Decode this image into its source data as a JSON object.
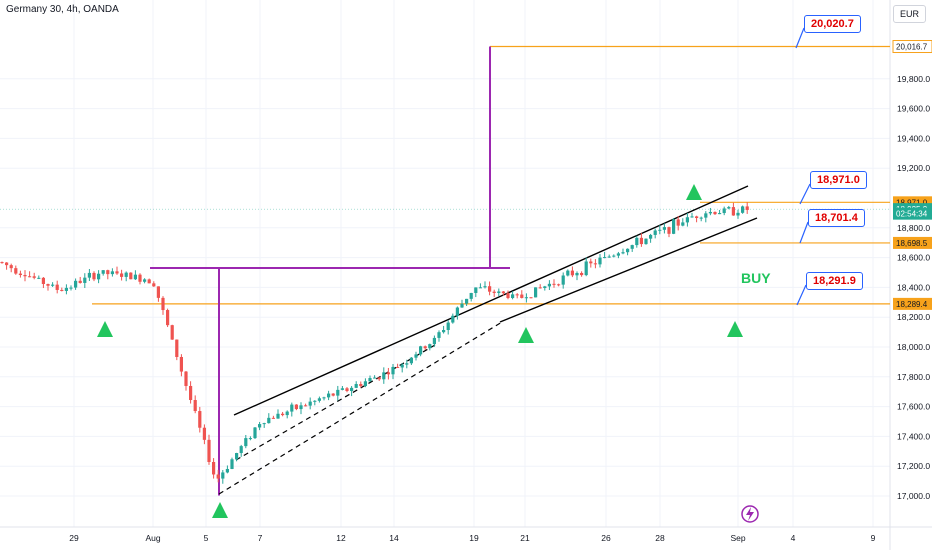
{
  "header": {
    "title": "Germany 30, 4h, OANDA",
    "currency": "EUR"
  },
  "colors": {
    "up": "#22ab94",
    "down": "#e53935",
    "level": "#f7a21b",
    "purple": "#9c27b0",
    "callout": "#2962ff",
    "buy": "#22c55e"
  },
  "callouts": [
    {
      "name": "callout-20020",
      "label": "20,020.7"
    },
    {
      "name": "callout-18971",
      "label": "18,971.0"
    },
    {
      "name": "callout-18701",
      "label": "18,701.4"
    },
    {
      "name": "callout-18291",
      "label": "18,291.9"
    }
  ],
  "buy_label": "BUY",
  "chart_data": {
    "type": "candlestick",
    "title": "Germany 30, 4h, OANDA",
    "y_axis": {
      "range": [
        16900,
        20150
      ],
      "ticks": [
        "17,000.0",
        "17,200.0",
        "17,400.0",
        "17,600.0",
        "17,800.0",
        "18,000.0",
        "18,200.0",
        "18,400.0",
        "18,600.0",
        "18,800.0",
        "19,200.0",
        "19,400.0",
        "19,600.0",
        "19,800.0"
      ]
    },
    "price_labels": [
      {
        "value": 20016.7,
        "text": "20,016.7",
        "style": "orange-outline"
      },
      {
        "value": 18971.0,
        "text": "18,971.0",
        "style": "orange-fill"
      },
      {
        "value": 18925.2,
        "text": "18,925.2",
        "style": "green-fill"
      },
      {
        "value": 18895,
        "text": "02:54:34",
        "style": "green-fill"
      },
      {
        "value": 18698.5,
        "text": "18,698.5",
        "style": "orange-fill"
      },
      {
        "value": 18289.4,
        "text": "18,289.4",
        "style": "orange-fill"
      }
    ],
    "x_axis": {
      "ticks": [
        "29",
        "Aug",
        "5",
        "7",
        "12",
        "14",
        "19",
        "21",
        "26",
        "28",
        "Sep",
        "4",
        "9"
      ]
    },
    "levels": [
      20016.7,
      18971.0,
      18698.5,
      18289.4
    ],
    "key_prices": {
      "swing_high": 18530,
      "swing_low": 17030
    },
    "anchors": [
      {
        "date": "Jul 24",
        "close": 18570
      },
      {
        "date": "Jul 27",
        "close": 18380
      },
      {
        "date": "Jul 30",
        "close": 18500
      },
      {
        "date": "Aug 1",
        "close": 18450
      },
      {
        "date": "Aug 5",
        "close": 17100
      },
      {
        "date": "Aug 7",
        "close": 17500
      },
      {
        "date": "Aug 12",
        "close": 17700
      },
      {
        "date": "Aug 14",
        "close": 17850
      },
      {
        "date": "Aug 16",
        "close": 18050
      },
      {
        "date": "Aug 19",
        "close": 18400
      },
      {
        "date": "Aug 20",
        "close": 18330
      },
      {
        "date": "Aug 26",
        "close": 18600
      },
      {
        "date": "Aug 29",
        "close": 18900
      },
      {
        "date": "Aug 30",
        "close": 18925
      }
    ]
  }
}
